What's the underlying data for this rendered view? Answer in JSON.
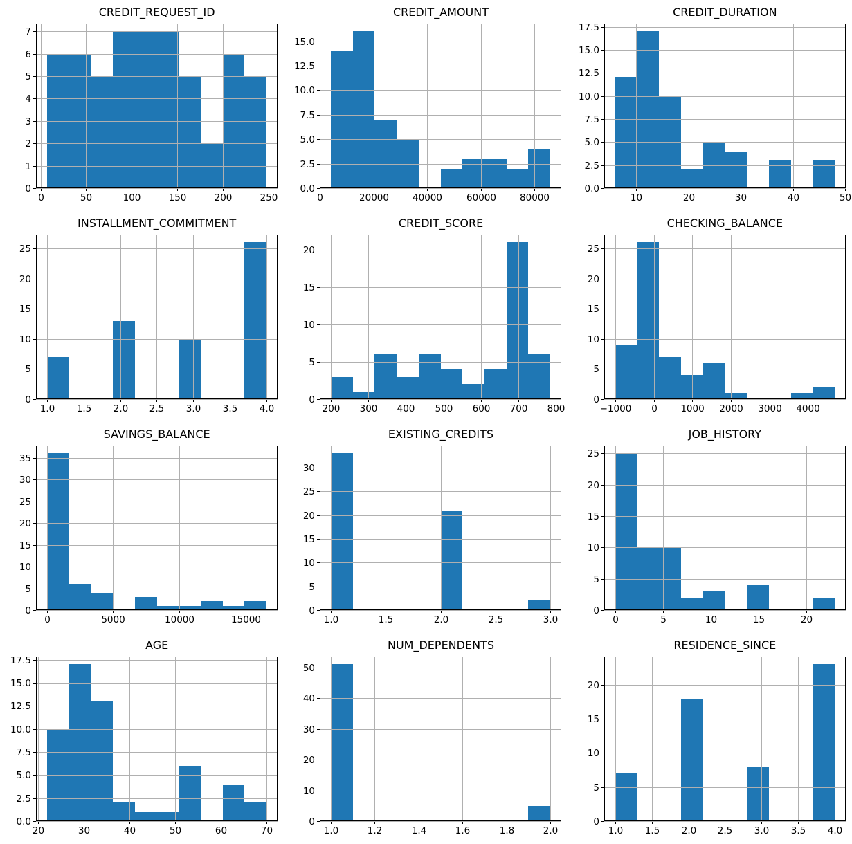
{
  "figure": {
    "background": "#ffffff",
    "bar_color": "#1f77b4",
    "grid_color": "#b0b0b0",
    "spine_color": "#000000",
    "text_color": "#000000",
    "grid": true,
    "layout": "4x3-histogram-grid",
    "total_samples": 56
  },
  "chart_data": [
    {
      "type": "bar",
      "subtype": "histogram",
      "title": "CREDIT_REQUEST_ID",
      "bin_start": 7,
      "bin_end": 248,
      "values": [
        6,
        6,
        5,
        7,
        7,
        7,
        5,
        2,
        6,
        5
      ],
      "xlim": [
        -5.05,
        260.05
      ],
      "ylim": [
        0,
        7.35
      ],
      "xticks": [
        "0",
        "50",
        "100",
        "150",
        "200",
        "250"
      ],
      "yticks": [
        "0",
        "1",
        "2",
        "3",
        "4",
        "5",
        "6",
        "7"
      ]
    },
    {
      "type": "bar",
      "subtype": "histogram",
      "title": "CREDIT_AMOUNT",
      "bin_start": 4000,
      "bin_end": 86000,
      "values": [
        14,
        16,
        7,
        5,
        0,
        2,
        3,
        3,
        2,
        4
      ],
      "xlim": [
        -100,
        90100
      ],
      "ylim": [
        0,
        16.8
      ],
      "xticks": [
        "0",
        "20000",
        "40000",
        "60000",
        "80000"
      ],
      "yticks": [
        "0.0",
        "2.5",
        "5.0",
        "7.5",
        "10.0",
        "12.5",
        "15.0"
      ]
    },
    {
      "type": "bar",
      "subtype": "histogram",
      "title": "CREDIT_DURATION",
      "bin_start": 6,
      "bin_end": 48,
      "values": [
        12,
        17,
        10,
        2,
        5,
        4,
        0,
        3,
        0,
        3
      ],
      "xlim": [
        3.9,
        50.1
      ],
      "ylim": [
        0,
        17.85
      ],
      "xticks": [
        "10",
        "20",
        "30",
        "40",
        "50"
      ],
      "yticks": [
        "0.0",
        "2.5",
        "5.0",
        "7.5",
        "10.0",
        "12.5",
        "15.0",
        "17.5"
      ]
    },
    {
      "type": "bar",
      "subtype": "histogram",
      "title": "INSTALLMENT_COMMITMENT",
      "bin_start": 1,
      "bin_end": 4,
      "values": [
        7,
        0,
        0,
        13,
        0,
        0,
        10,
        0,
        0,
        26
      ],
      "xlim": [
        0.85,
        4.15
      ],
      "ylim": [
        0,
        27.3
      ],
      "xticks": [
        "1.0",
        "1.5",
        "2.0",
        "2.5",
        "3.0",
        "3.5",
        "4.0"
      ],
      "yticks": [
        "0",
        "5",
        "10",
        "15",
        "20",
        "25"
      ]
    },
    {
      "type": "bar",
      "subtype": "histogram",
      "title": "CREDIT_SCORE",
      "bin_start": 200,
      "bin_end": 785,
      "values": [
        3,
        1,
        6,
        3,
        6,
        4,
        2,
        4,
        21,
        6
      ],
      "xlim": [
        170.75,
        814.25
      ],
      "ylim": [
        0,
        22.05
      ],
      "xticks": [
        "200",
        "300",
        "400",
        "500",
        "600",
        "700",
        "800"
      ],
      "yticks": [
        "0",
        "5",
        "10",
        "15",
        "20"
      ]
    },
    {
      "type": "bar",
      "subtype": "histogram",
      "title": "CHECKING_BALANCE",
      "bin_start": -1000,
      "bin_end": 4700,
      "values": [
        9,
        26,
        7,
        4,
        6,
        1,
        0,
        0,
        1,
        2
      ],
      "xlim": [
        -1285,
        4985
      ],
      "ylim": [
        0,
        27.3
      ],
      "xticks": [
        "−1000",
        "0",
        "1000",
        "2000",
        "3000",
        "4000"
      ],
      "yticks": [
        "0",
        "5",
        "10",
        "15",
        "20",
        "25"
      ]
    },
    {
      "type": "bar",
      "subtype": "histogram",
      "title": "SAVINGS_BALANCE",
      "bin_start": 0,
      "bin_end": 16600,
      "values": [
        36,
        6,
        4,
        0,
        3,
        1,
        1,
        2,
        1,
        2
      ],
      "xlim": [
        -830,
        17430
      ],
      "ylim": [
        0,
        37.8
      ],
      "xticks": [
        "0",
        "5000",
        "10000",
        "15000"
      ],
      "yticks": [
        "0",
        "5",
        "10",
        "15",
        "20",
        "25",
        "30",
        "35"
      ]
    },
    {
      "type": "bar",
      "subtype": "histogram",
      "title": "EXISTING_CREDITS",
      "bin_start": 1,
      "bin_end": 3,
      "values": [
        33,
        0,
        0,
        0,
        0,
        21,
        0,
        0,
        0,
        2
      ],
      "xlim": [
        0.9,
        3.1
      ],
      "ylim": [
        0,
        34.65
      ],
      "xticks": [
        "1.0",
        "1.5",
        "2.0",
        "2.5",
        "3.0"
      ],
      "yticks": [
        "0",
        "5",
        "10",
        "15",
        "20",
        "25",
        "30"
      ]
    },
    {
      "type": "bar",
      "subtype": "histogram",
      "title": "JOB_HISTORY",
      "bin_start": 0,
      "bin_end": 23,
      "values": [
        25,
        10,
        10,
        2,
        3,
        0,
        4,
        0,
        0,
        2
      ],
      "xlim": [
        -1.15,
        24.15
      ],
      "ylim": [
        0,
        26.25
      ],
      "xticks": [
        "0",
        "5",
        "10",
        "15",
        "20"
      ],
      "yticks": [
        "0",
        "5",
        "10",
        "15",
        "20",
        "25"
      ]
    },
    {
      "type": "bar",
      "subtype": "histogram",
      "title": "AGE",
      "bin_start": 22,
      "bin_end": 70,
      "values": [
        10,
        17,
        13,
        2,
        1,
        1,
        6,
        0,
        4,
        2
      ],
      "xlim": [
        19.6,
        72.4
      ],
      "ylim": [
        0,
        17.85
      ],
      "xticks": [
        "20",
        "30",
        "40",
        "50",
        "60",
        "70"
      ],
      "yticks": [
        "0.0",
        "2.5",
        "5.0",
        "7.5",
        "10.0",
        "12.5",
        "15.0",
        "17.5"
      ]
    },
    {
      "type": "bar",
      "subtype": "histogram",
      "title": "NUM_DEPENDENTS",
      "bin_start": 1,
      "bin_end": 2,
      "values": [
        51,
        0,
        0,
        0,
        0,
        0,
        0,
        0,
        0,
        5
      ],
      "xlim": [
        0.95,
        2.05
      ],
      "ylim": [
        0,
        53.55
      ],
      "xticks": [
        "1.0",
        "1.2",
        "1.4",
        "1.6",
        "1.8",
        "2.0"
      ],
      "yticks": [
        "0",
        "10",
        "20",
        "30",
        "40",
        "50"
      ]
    },
    {
      "type": "bar",
      "subtype": "histogram",
      "title": "RESIDENCE_SINCE",
      "bin_start": 1,
      "bin_end": 4,
      "values": [
        7,
        0,
        0,
        18,
        0,
        0,
        8,
        0,
        0,
        23
      ],
      "xlim": [
        0.85,
        4.15
      ],
      "ylim": [
        0,
        24.15
      ],
      "xticks": [
        "1.0",
        "1.5",
        "2.0",
        "2.5",
        "3.0",
        "3.5",
        "4.0"
      ],
      "yticks": [
        "0",
        "5",
        "10",
        "15",
        "20"
      ]
    }
  ]
}
